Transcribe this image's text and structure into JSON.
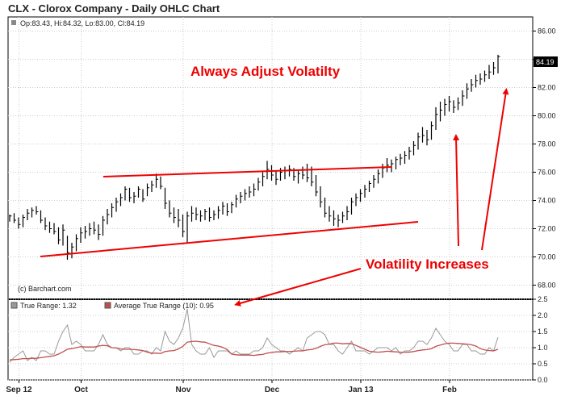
{
  "window": {
    "title": "CLX - Clorox Company - Daily OHLC Chart",
    "ohlc_readout": "Op:83.43, Hi:84.32, Lo:83.00, Cl:84.19",
    "watermark": "(c) Barchart.com"
  },
  "colors": {
    "background": "#ffffff",
    "grid": "#cccccc",
    "bar": "#000000",
    "annotation": "#ee0000",
    "true_range": "#999999",
    "average_true_range": "#c0504d",
    "last_price_box": "#000000"
  },
  "annotations": {
    "heading": "Always Adjust Volatilty",
    "callout": "Volatility Increases"
  },
  "chart_data": [
    {
      "type": "ohlc",
      "title": "CLX - Clorox Company - Daily OHLC Chart",
      "ylim": [
        67,
        87
      ],
      "yticks": [
        68,
        70,
        72,
        74,
        76,
        78,
        80,
        82,
        84,
        86
      ],
      "ytick_labels": [
        "68.00",
        "70.00",
        "72.00",
        "74.00",
        "76.00",
        "78.00",
        "80.00",
        "82.00",
        "84.00",
        "86.00"
      ],
      "last_price_label": "84.19",
      "last_price": 84.19,
      "x_month_labels": [
        "Sep 12",
        "Oct",
        "Nov",
        "Dec",
        "Jan 13",
        "Feb"
      ],
      "x_month_start_index": [
        1,
        15,
        38,
        58,
        78,
        98
      ],
      "grid": true,
      "bars": [
        [
          73.0,
          72.5,
          72.9
        ],
        [
          73.1,
          72.4,
          72.6
        ],
        [
          72.8,
          72.0,
          72.3
        ],
        [
          73.0,
          72.1,
          72.8
        ],
        [
          73.4,
          72.6,
          73.1
        ],
        [
          73.5,
          72.8,
          73.3
        ],
        [
          73.6,
          73.0,
          73.2
        ],
        [
          73.3,
          72.4,
          72.6
        ],
        [
          72.8,
          71.9,
          72.2
        ],
        [
          72.5,
          71.7,
          72.0
        ],
        [
          72.4,
          71.6,
          71.8
        ],
        [
          72.1,
          70.9,
          71.2
        ],
        [
          72.3,
          70.8,
          71.9
        ],
        [
          71.5,
          69.8,
          70.3
        ],
        [
          71.0,
          69.9,
          70.7
        ],
        [
          71.6,
          70.4,
          71.3
        ],
        [
          72.1,
          71.0,
          71.7
        ],
        [
          72.2,
          71.3,
          71.8
        ],
        [
          72.4,
          71.5,
          72.0
        ],
        [
          72.5,
          71.6,
          71.9
        ],
        [
          72.3,
          71.2,
          71.6
        ],
        [
          72.9,
          71.5,
          72.6
        ],
        [
          73.4,
          72.3,
          73.0
        ],
        [
          73.8,
          72.8,
          73.5
        ],
        [
          74.2,
          73.2,
          73.9
        ],
        [
          74.5,
          73.6,
          74.2
        ],
        [
          75.0,
          74.0,
          74.8
        ],
        [
          74.9,
          73.9,
          74.2
        ],
        [
          74.6,
          73.8,
          74.3
        ],
        [
          75.0,
          74.2,
          74.8
        ],
        [
          74.8,
          73.9,
          74.1
        ],
        [
          75.2,
          74.3,
          74.9
        ],
        [
          75.4,
          74.6,
          75.1
        ],
        [
          75.9,
          74.9,
          75.5
        ],
        [
          75.7,
          74.8,
          75.0
        ],
        [
          74.9,
          73.4,
          73.8
        ],
        [
          74.0,
          72.8,
          73.1
        ],
        [
          73.5,
          72.4,
          72.8
        ],
        [
          73.4,
          72.1,
          72.6
        ],
        [
          73.0,
          71.4,
          71.8
        ],
        [
          73.2,
          71.0,
          72.9
        ],
        [
          73.6,
          72.5,
          73.1
        ],
        [
          73.5,
          72.6,
          73.0
        ],
        [
          73.3,
          72.5,
          72.9
        ],
        [
          73.4,
          72.6,
          73.2
        ],
        [
          73.5,
          72.5,
          72.8
        ],
        [
          73.3,
          72.6,
          73.0
        ],
        [
          73.6,
          72.7,
          73.3
        ],
        [
          73.9,
          73.0,
          73.6
        ],
        [
          73.8,
          72.9,
          73.2
        ],
        [
          73.9,
          73.1,
          73.7
        ],
        [
          74.4,
          73.5,
          74.1
        ],
        [
          74.6,
          73.8,
          74.3
        ],
        [
          74.8,
          74.0,
          74.5
        ],
        [
          75.0,
          74.2,
          74.6
        ],
        [
          75.2,
          74.3,
          74.8
        ],
        [
          75.6,
          74.7,
          75.3
        ],
        [
          76.0,
          75.0,
          75.7
        ],
        [
          76.8,
          75.5,
          76.2
        ],
        [
          76.5,
          75.4,
          75.8
        ],
        [
          76.1,
          75.1,
          75.5
        ],
        [
          76.3,
          75.4,
          76.0
        ],
        [
          76.4,
          75.5,
          76.1
        ],
        [
          76.5,
          75.7,
          76.2
        ],
        [
          76.3,
          75.4,
          75.7
        ],
        [
          76.2,
          75.2,
          75.9
        ],
        [
          76.4,
          75.5,
          75.8
        ],
        [
          76.6,
          75.3,
          75.6
        ],
        [
          76.4,
          75.0,
          75.3
        ],
        [
          75.8,
          74.3,
          74.6
        ],
        [
          75.0,
          73.5,
          73.9
        ],
        [
          74.2,
          72.8,
          73.1
        ],
        [
          73.6,
          72.5,
          72.9
        ],
        [
          73.3,
          72.2,
          72.7
        ],
        [
          73.0,
          72.1,
          72.6
        ],
        [
          73.2,
          72.4,
          72.9
        ],
        [
          73.6,
          72.6,
          73.2
        ],
        [
          74.2,
          73.0,
          73.9
        ],
        [
          74.5,
          73.6,
          74.2
        ],
        [
          74.8,
          73.9,
          74.5
        ],
        [
          75.1,
          74.2,
          74.8
        ],
        [
          75.4,
          74.6,
          75.2
        ],
        [
          75.8,
          74.9,
          75.5
        ],
        [
          76.2,
          75.2,
          75.9
        ],
        [
          76.6,
          75.6,
          76.3
        ],
        [
          77.0,
          76.0,
          76.5
        ],
        [
          76.9,
          76.0,
          76.6
        ],
        [
          77.1,
          76.2,
          76.9
        ],
        [
          77.3,
          76.5,
          77.0
        ],
        [
          77.5,
          76.6,
          77.2
        ],
        [
          77.8,
          76.9,
          77.5
        ],
        [
          78.2,
          77.2,
          77.9
        ],
        [
          78.8,
          77.6,
          78.5
        ],
        [
          79.2,
          78.1,
          78.6
        ],
        [
          79.0,
          77.9,
          78.3
        ],
        [
          79.6,
          78.3,
          79.3
        ],
        [
          80.6,
          79.0,
          80.1
        ],
        [
          81.0,
          79.6,
          80.4
        ],
        [
          81.2,
          80.0,
          80.8
        ],
        [
          81.4,
          80.3,
          81.0
        ],
        [
          81.1,
          80.2,
          80.6
        ],
        [
          81.3,
          80.4,
          80.9
        ],
        [
          81.8,
          80.7,
          81.4
        ],
        [
          82.3,
          81.2,
          81.9
        ],
        [
          82.6,
          81.7,
          82.2
        ],
        [
          82.9,
          82.0,
          82.5
        ],
        [
          83.0,
          82.2,
          82.6
        ],
        [
          83.2,
          82.4,
          82.9
        ],
        [
          83.6,
          82.6,
          83.1
        ],
        [
          83.8,
          82.9,
          83.4
        ],
        [
          84.32,
          83.0,
          84.19
        ]
      ]
    },
    {
      "type": "line",
      "legend": "top-left",
      "ylim": [
        0.0,
        2.5
      ],
      "yticks": [
        0.0,
        0.5,
        1.0,
        1.5,
        2.0,
        2.5
      ],
      "ytick_labels": [
        "0.0",
        "0.5",
        "1.0",
        "1.5",
        "2.0",
        "2.5"
      ],
      "grid": true,
      "series": [
        {
          "name": "True Range: 1.32",
          "values": [
            0.55,
            0.7,
            0.8,
            0.9,
            0.6,
            0.7,
            0.6,
            0.9,
            0.9,
            0.8,
            0.8,
            1.2,
            1.5,
            1.7,
            1.1,
            1.2,
            1.1,
            0.9,
            0.9,
            0.9,
            1.1,
            1.4,
            1.1,
            1.0,
            1.0,
            0.9,
            1.0,
            1.0,
            0.8,
            0.8,
            0.9,
            0.9,
            0.8,
            1.0,
            0.9,
            1.5,
            1.2,
            1.1,
            1.3,
            1.6,
            2.2,
            1.1,
            0.9,
            0.8,
            0.8,
            1.0,
            0.7,
            0.9,
            0.9,
            0.9,
            0.8,
            0.9,
            0.8,
            0.8,
            0.8,
            0.9,
            0.9,
            1.0,
            1.3,
            1.1,
            1.0,
            0.9,
            0.9,
            0.8,
            0.9,
            1.0,
            0.9,
            1.3,
            1.4,
            1.5,
            1.5,
            1.4,
            1.1,
            1.1,
            0.9,
            0.8,
            1.0,
            1.2,
            0.9,
            0.9,
            0.9,
            0.8,
            0.9,
            1.0,
            1.0,
            1.0,
            0.9,
            1.0,
            0.8,
            0.9,
            0.9,
            1.0,
            1.2,
            1.2,
            1.1,
            1.3,
            1.6,
            1.4,
            1.2,
            1.1,
            0.9,
            0.9,
            1.1,
            1.1,
            0.9,
            0.9,
            0.8,
            0.8,
            1.0,
            0.9,
            1.32
          ]
        },
        {
          "name": "Average True Range (10): 0.95",
          "values": [
            0.62,
            0.63,
            0.64,
            0.66,
            0.66,
            0.67,
            0.67,
            0.69,
            0.71,
            0.73,
            0.75,
            0.8,
            0.87,
            0.95,
            0.97,
            1.0,
            1.03,
            1.02,
            1.02,
            1.02,
            1.05,
            1.07,
            1.06,
            1.0,
            0.99,
            0.96,
            0.95,
            0.95,
            0.94,
            0.93,
            0.91,
            0.86,
            0.83,
            0.83,
            0.82,
            0.88,
            0.9,
            0.91,
            0.96,
            1.04,
            1.17,
            1.19,
            1.2,
            1.18,
            1.17,
            1.12,
            1.07,
            1.05,
            1.01,
            0.94,
            0.8,
            0.78,
            0.77,
            0.77,
            0.77,
            0.76,
            0.78,
            0.79,
            0.83,
            0.85,
            0.87,
            0.87,
            0.88,
            0.88,
            0.89,
            0.9,
            0.9,
            0.93,
            0.94,
            0.98,
            1.04,
            1.09,
            1.11,
            1.14,
            1.14,
            1.12,
            1.13,
            1.12,
            1.07,
            1.01,
            0.95,
            0.89,
            0.87,
            0.86,
            0.87,
            0.89,
            0.88,
            0.87,
            0.86,
            0.86,
            0.86,
            0.88,
            0.91,
            0.93,
            0.94,
            0.97,
            1.04,
            1.08,
            1.12,
            1.14,
            1.14,
            1.13,
            1.12,
            1.11,
            1.09,
            1.05,
            0.97,
            0.93,
            0.91,
            0.9,
            0.95
          ]
        }
      ]
    }
  ]
}
